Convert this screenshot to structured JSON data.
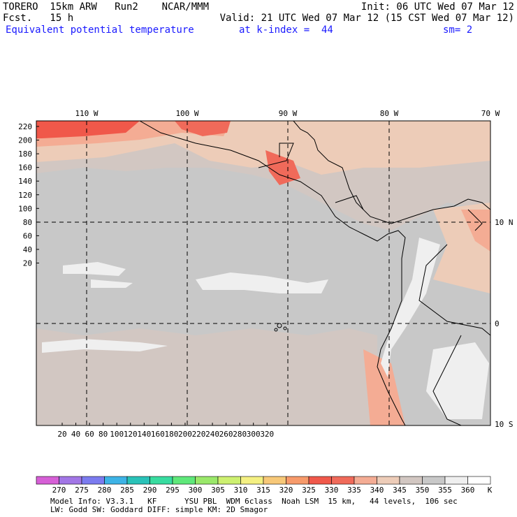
{
  "header": {
    "model": "TORERO  15km ARW   Run2    NCAR/MMM",
    "init": "Init: 06 UTC Wed 07 Mar 12",
    "forecast": "Fcst.   15 h",
    "valid": "Valid: 21 UTC Wed 07 Mar 12 (15 CST Wed 07 Mar 12)",
    "field": "Equivalent potential temperature",
    "level": "at k-index =  44",
    "smoothing": "sm= 2"
  },
  "map": {
    "lon_labels": [
      "110 W",
      "100 W",
      "90 W",
      "80 W",
      "70 W"
    ],
    "lat_labels": [
      "10 N",
      "0",
      "10 S"
    ],
    "y_ticks": [
      "220",
      "200",
      "180",
      "160",
      "140",
      "120",
      "100",
      "80",
      "60",
      "40",
      "20"
    ],
    "x_ticks": [
      "20",
      "40",
      "60",
      "80",
      "100",
      "120",
      "140",
      "160",
      "180",
      "200",
      "220",
      "240",
      "260",
      "280",
      "300",
      "320"
    ]
  },
  "colorbar": {
    "labels": [
      "270",
      "275",
      "280",
      "285",
      "290",
      "295",
      "300",
      "305",
      "310",
      "315",
      "320",
      "325",
      "330",
      "335",
      "340",
      "345",
      "350",
      "355",
      "360"
    ],
    "unit": "K",
    "colors": [
      "#d65fd6",
      "#a276e6",
      "#7b7bef",
      "#3db3e6",
      "#29c2b8",
      "#38dca0",
      "#5fe87a",
      "#9ae86a",
      "#cdf070",
      "#f4f082",
      "#f7c878",
      "#f79a6a",
      "#f0584a",
      "#f06a5a",
      "#f4ac94",
      "#edccb8",
      "#d2c7c2",
      "#c8c8c8",
      "#efefef",
      "#ffffff"
    ]
  },
  "footer": {
    "line1": "Model Info: V3.3.1   KF      YSU PBL  WDM 6class  Noah LSM  15 km,   44 levels,  106 sec",
    "line2": "LW: Godd SW: Goddard DIFF: simple KM: 2D Smagor"
  }
}
